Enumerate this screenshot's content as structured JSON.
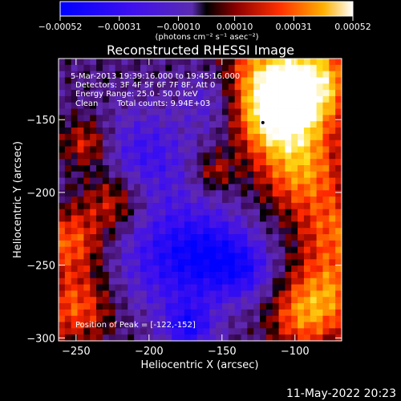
{
  "chart_data": {
    "type": "heatmap",
    "title": "Reconstructed RHESSI Image",
    "xlabel": "Heliocentric X (arcsec)",
    "ylabel": "Heliocentric Y (arcsec)",
    "xlim": [
      -262,
      -68
    ],
    "ylim": [
      -302,
      -108
    ],
    "xticks": [
      -250,
      -200,
      -150,
      -100
    ],
    "yticks": [
      -300,
      -250,
      -200,
      -150
    ],
    "colorbar": {
      "min": -0.00052,
      "max": 0.00052,
      "ticks": [
        -0.00052,
        -0.00031,
        -0.0001,
        0.0001,
        0.00031,
        0.00052
      ],
      "tick_labels": [
        "-0.00052",
        "-0.00031",
        "-0.00010",
        "0.00010",
        "0.00031",
        "0.00052"
      ],
      "units": "(photons cm⁻² s⁻¹ asec⁻²)"
    },
    "annotations": {
      "time_range": "5-Mar-2013 19:39:16.000 to 19:45:16.000",
      "detectors": "Detectors: 3F 4F 5F 6F 7F 8F, Att 0",
      "energy": "Energy Range: 25.0 - 50.0 keV",
      "algorithm": "Clean",
      "counts": "Total counts: 9.94E+03",
      "peak": "Position of Peak = [-122,-152]"
    },
    "peak_position": [
      -122,
      -152
    ],
    "grid": false
  },
  "footer": {
    "date": "11-May-2022 20:23"
  }
}
